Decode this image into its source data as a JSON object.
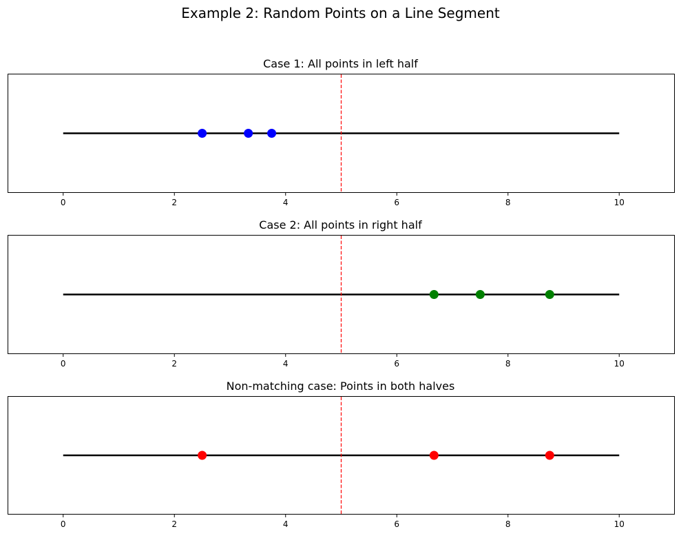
{
  "figure": {
    "title": "Example 2: Random Points on a Line Segment"
  },
  "chart_data": [
    {
      "type": "scatter",
      "title": "Case 1: All points in left half",
      "xlim": [
        -1,
        11
      ],
      "xticks": [
        0,
        2,
        4,
        6,
        8,
        10
      ],
      "y_axis_visible": false,
      "segment": [
        0,
        10
      ],
      "divider": {
        "x": 5,
        "color": "#ff0000",
        "style": "dashed"
      },
      "points": [
        2.5,
        3.33,
        3.75
      ],
      "point_color": "#0000ff",
      "segment_color": "#000000",
      "grid": false
    },
    {
      "type": "scatter",
      "title": "Case 2: All points in right half",
      "xlim": [
        -1,
        11
      ],
      "xticks": [
        0,
        2,
        4,
        6,
        8,
        10
      ],
      "y_axis_visible": false,
      "segment": [
        0,
        10
      ],
      "divider": {
        "x": 5,
        "color": "#ff0000",
        "style": "dashed"
      },
      "points": [
        6.67,
        7.5,
        8.75
      ],
      "point_color": "#008000",
      "segment_color": "#000000",
      "grid": false
    },
    {
      "type": "scatter",
      "title": "Non-matching case: Points in both halves",
      "xlim": [
        -1,
        11
      ],
      "xticks": [
        0,
        2,
        4,
        6,
        8,
        10
      ],
      "y_axis_visible": false,
      "segment": [
        0,
        10
      ],
      "divider": {
        "x": 5,
        "color": "#ff0000",
        "style": "dashed"
      },
      "points": [
        2.5,
        6.67,
        8.75
      ],
      "point_color": "#ff0000",
      "segment_color": "#000000",
      "grid": false
    }
  ]
}
